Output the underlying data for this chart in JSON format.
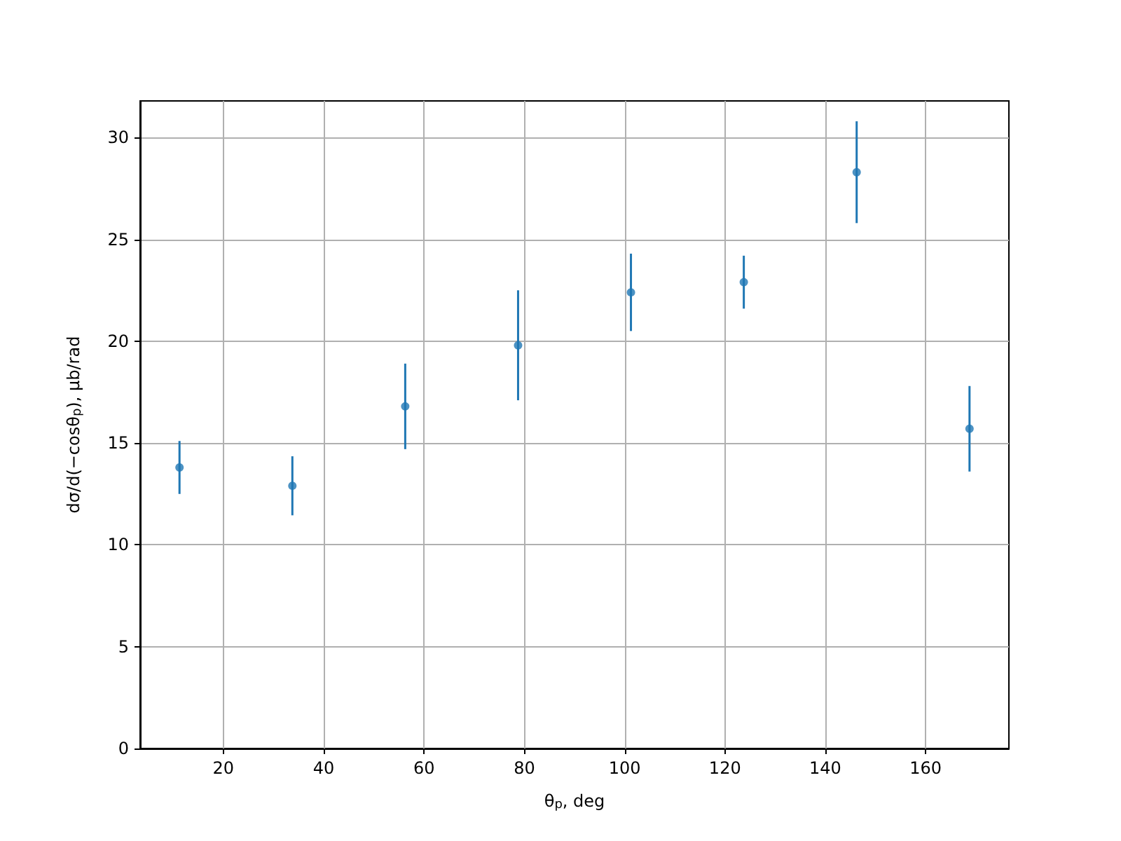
{
  "chart_data": {
    "type": "scatter",
    "xlabel": "θ$_{p}$, deg",
    "ylabel": "dσ/d(−cosθ$_{p}$), μb/rad",
    "x": [
      11.25,
      33.75,
      56.25,
      78.75,
      101.25,
      123.75,
      146.25,
      168.75
    ],
    "values": [
      13.8,
      12.9,
      16.8,
      19.8,
      22.4,
      22.9,
      28.3,
      15.7
    ],
    "errors": [
      1.3,
      1.45,
      2.1,
      2.7,
      1.9,
      1.3,
      2.5,
      2.1
    ],
    "color": "#1f77b4",
    "marker": "circle",
    "xlim": [
      3.4,
      176.6
    ],
    "ylim": [
      0,
      31.8
    ],
    "xticks": [
      20,
      40,
      60,
      80,
      100,
      120,
      140,
      160
    ],
    "yticks": [
      0,
      5,
      10,
      15,
      20,
      25,
      30
    ],
    "grid": true
  }
}
